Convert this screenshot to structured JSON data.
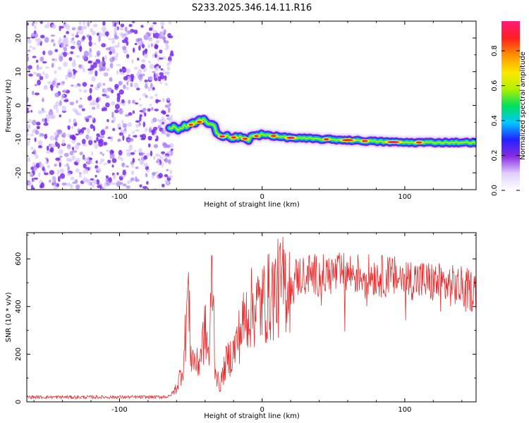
{
  "title": "S233.2025.346.14.11.R16",
  "colors": {
    "snr_line": "#e83030",
    "ridge_core": "#e8283a",
    "noise_dark": "#7b2bf0",
    "noise_light": "#d6c6ff"
  },
  "chart_data": [
    {
      "type": "heatmap",
      "title": "S233.2025.346.14.11.R16",
      "xlabel": "Height of straight line (km)",
      "ylabel": "Frequency (Hz)",
      "xlim": [
        -165,
        150
      ],
      "ylim": [
        -25,
        25
      ],
      "xticks": [
        -100,
        0,
        100
      ],
      "yticks": [
        -20,
        -10,
        0,
        10,
        20
      ],
      "noise_region_x": [
        -165,
        -65
      ],
      "ridge_x": [
        -65,
        -55,
        -45,
        -40,
        -35,
        -30,
        -25,
        -20,
        -10,
        0,
        10,
        20,
        40,
        60,
        80,
        100,
        120,
        150
      ],
      "ridge_freq": [
        -7,
        -6.5,
        -5,
        -4.5,
        -5,
        -9,
        -9.5,
        -9.5,
        -10,
        -8.5,
        -9.2,
        -9.6,
        -10,
        -10.3,
        -10.7,
        -11,
        -11,
        -11
      ],
      "colorbar": {
        "label": "Normalized spectral amplitude",
        "range": [
          0,
          0.97
        ],
        "ticks": [
          "0.0",
          "0.2",
          "0.4",
          "0.6",
          "0.8"
        ],
        "stops": [
          "#ffffff",
          "#e0d0ff",
          "#8a2be2",
          "#2222ff",
          "#00c8ff",
          "#00e05a",
          "#b4f000",
          "#ffe600",
          "#ff9000",
          "#ff1e1e",
          "#ff1a7a"
        ]
      }
    },
    {
      "type": "line",
      "xlabel": "Height of straight line (km)",
      "ylabel": "SNR (10 * v/v)",
      "xlim": [
        -165,
        150
      ],
      "ylim": [
        0,
        710
      ],
      "xticks": [
        -100,
        0,
        100
      ],
      "yticks": [
        0,
        200,
        400,
        600
      ],
      "series": [
        {
          "name": "SNR",
          "color": "#e83030",
          "x": [
            -165,
            -140,
            -120,
            -100,
            -80,
            -65,
            -60,
            -55,
            -52,
            -50,
            -45,
            -40,
            -37,
            -35,
            -33,
            -30,
            -25,
            -20,
            -15,
            -10,
            -5,
            0,
            5,
            10,
            20,
            30,
            40,
            60,
            80,
            100,
            120,
            140,
            150
          ],
          "y": [
            20,
            20,
            20,
            20,
            20,
            22,
            60,
            160,
            480,
            200,
            150,
            300,
            180,
            590,
            150,
            60,
            170,
            210,
            300,
            380,
            400,
            410,
            440,
            470,
            510,
            540,
            530,
            540,
            530,
            520,
            500,
            480,
            460
          ]
        }
      ]
    }
  ]
}
